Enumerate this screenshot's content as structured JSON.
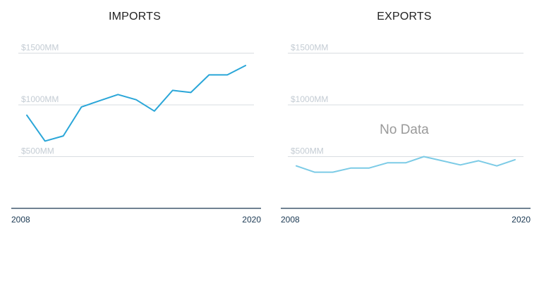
{
  "chart_data": [
    {
      "type": "line",
      "title": "IMPORTS",
      "x_start_label": "2008",
      "x_end_label": "2020",
      "y_ticks": [
        {
          "value": 500,
          "label": "$500MM"
        },
        {
          "value": 1000,
          "label": "$1000MM"
        },
        {
          "value": 1500,
          "label": "$1500MM"
        }
      ],
      "ylim": [
        0,
        1500
      ],
      "grid": true,
      "no_data_label": "",
      "series": [
        {
          "color": "#2aa6d8",
          "x": [
            "2008",
            "2009",
            "2010",
            "2011",
            "2012",
            "2013",
            "2014",
            "2015",
            "2016",
            "2017",
            "2018",
            "2019",
            "2020"
          ],
          "values": [
            900,
            650,
            700,
            980,
            1040,
            1100,
            1050,
            940,
            1140,
            1120,
            1290,
            1290,
            1380
          ]
        }
      ]
    },
    {
      "type": "line",
      "title": "EXPORTS",
      "x_start_label": "2008",
      "x_end_label": "2020",
      "y_ticks": [
        {
          "value": 500,
          "label": "$500MM"
        },
        {
          "value": 1000,
          "label": "$1000MM"
        },
        {
          "value": 1500,
          "label": "$1500MM"
        }
      ],
      "ylim": [
        0,
        1500
      ],
      "grid": true,
      "no_data_label": "No Data",
      "series": [
        {
          "color": "#7ccbe6",
          "x": [
            "2008",
            "2009",
            "2010",
            "2011",
            "2012",
            "2013",
            "2014",
            "2015",
            "2016",
            "2017",
            "2018",
            "2019",
            "2020"
          ],
          "values": [
            410,
            350,
            350,
            390,
            390,
            440,
            440,
            500,
            460,
            420,
            460,
            410,
            470
          ]
        }
      ]
    }
  ],
  "colors": {
    "baseline": "#1a3852",
    "gridline": "#d9dde1"
  }
}
